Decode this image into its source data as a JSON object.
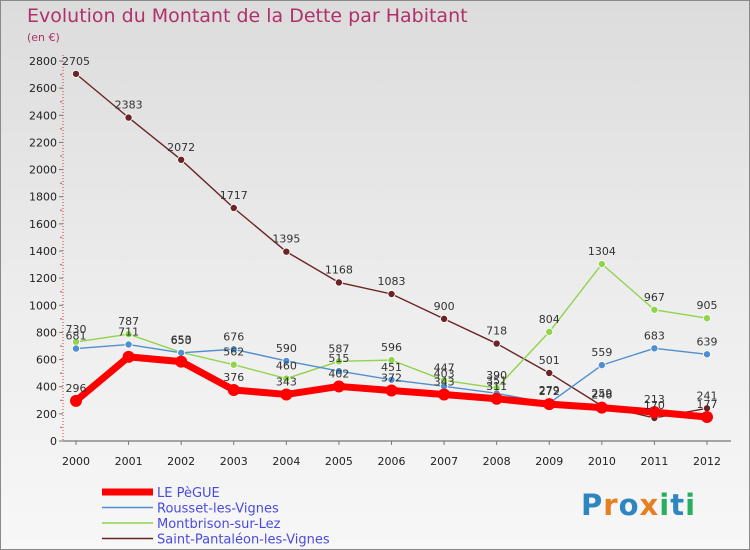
{
  "header": {
    "title": "Evolution du Montant de la Dette par Habitant",
    "subtitle": "(en €)"
  },
  "logo": {
    "text": "Proxiti"
  },
  "chart_data": {
    "type": "line",
    "title": "Evolution du Montant de la Dette par Habitant",
    "subtitle": "(en €)",
    "xlabel": "",
    "ylabel": "",
    "x": [
      "2000",
      "2001",
      "2002",
      "2003",
      "2004",
      "2005",
      "2006",
      "2007",
      "2008",
      "2009",
      "2010",
      "2011",
      "2012"
    ],
    "ylim": [
      0,
      2800
    ],
    "yticks": [
      0,
      200,
      400,
      600,
      800,
      1000,
      1200,
      1400,
      1600,
      1800,
      2000,
      2200,
      2400,
      2600,
      2800
    ],
    "grid": false,
    "legend_position": "bottom-left",
    "series": [
      {
        "name": "LE PèGUE",
        "color": "#ff0000",
        "values": [
          296,
          620,
          585,
          376,
          343,
          402,
          372,
          343,
          311,
          272,
          246,
          213,
          177
        ],
        "labels": [
          "296",
          "",
          "",
          "376",
          "343",
          "402",
          "372",
          "343",
          "311",
          "272",
          "246",
          "213",
          "177"
        ]
      },
      {
        "name": "Rousset-les-Vignes",
        "color": "#4f8fcf",
        "values": [
          681,
          711,
          650,
          676,
          590,
          515,
          451,
          403,
          351,
          279,
          559,
          683,
          639
        ],
        "labels": [
          "681",
          "711",
          "650",
          "676",
          "590",
          "515",
          "451",
          "403",
          "351",
          "279",
          "559",
          "683",
          "639"
        ]
      },
      {
        "name": "Montbrison-sur-Lez",
        "color": "#8fd44b",
        "values": [
          730,
          787,
          653,
          562,
          460,
          587,
          596,
          447,
          390,
          804,
          1304,
          967,
          905
        ],
        "labels": [
          "730",
          "787",
          "653",
          "562",
          "460",
          "587",
          "596",
          "447",
          "390",
          "804",
          "1304",
          "967",
          "905"
        ]
      },
      {
        "name": "Saint-Pantaléon-les-Vignes",
        "color": "#6b2424",
        "values": [
          2705,
          2383,
          2072,
          1717,
          1395,
          1168,
          1083,
          900,
          718,
          501,
          259,
          170,
          241
        ],
        "labels": [
          "2705",
          "2383",
          "2072",
          "1717",
          "1395",
          "1168",
          "1083",
          "900",
          "718",
          "501",
          "259",
          "170",
          "241"
        ]
      }
    ]
  }
}
